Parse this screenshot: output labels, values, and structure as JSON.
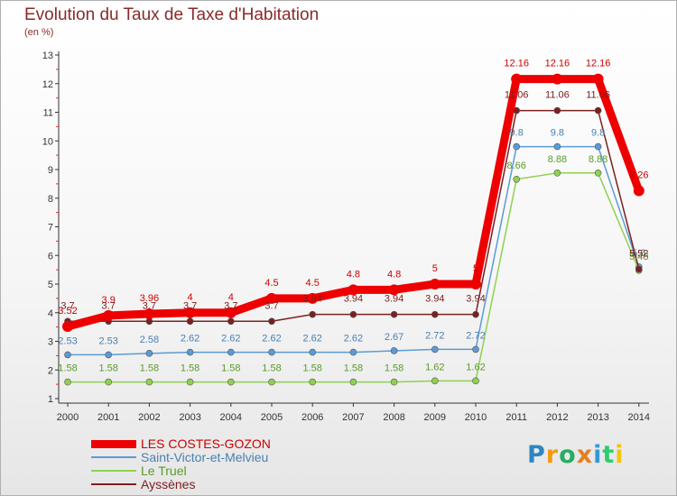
{
  "chart_data": {
    "type": "line",
    "title": "Evolution du Taux de Taxe d'Habitation",
    "unit_label": "(en %)",
    "xlabel": "",
    "ylabel": "",
    "categories": [
      "2000",
      "2001",
      "2002",
      "2003",
      "2004",
      "2005",
      "2006",
      "2007",
      "2008",
      "2009",
      "2010",
      "2011",
      "2012",
      "2013",
      "2014"
    ],
    "ylim": [
      1,
      13
    ],
    "yticks": [
      1,
      2,
      3,
      4,
      5,
      6,
      7,
      8,
      9,
      10,
      11,
      12,
      13
    ],
    "grid": false,
    "legend_position": "bottom-left",
    "series": [
      {
        "name": "LES COSTES-GOZON",
        "color": "#ee0000",
        "text_color": "#cc0000",
        "values": [
          3.52,
          3.9,
          3.96,
          4.0,
          4.0,
          4.5,
          4.5,
          4.8,
          4.8,
          5.0,
          5.0,
          12.16,
          12.16,
          12.16,
          8.26
        ],
        "labels": [
          "3.52",
          "3.9",
          "3.96",
          "4",
          "4",
          "4.5",
          "4.5",
          "4.8",
          "4.8",
          "5",
          "5",
          "12.16",
          "12.16",
          "12.16",
          "8.26"
        ]
      },
      {
        "name": "Saint-Victor-et-Melvieu",
        "color": "#5b9bd5",
        "text_color": "#4a7fb0",
        "values": [
          2.53,
          2.53,
          2.58,
          2.62,
          2.62,
          2.62,
          2.62,
          2.62,
          2.67,
          2.72,
          2.72,
          9.8,
          9.8,
          9.8,
          5.6
        ],
        "labels": [
          "2.53",
          "2.53",
          "2.58",
          "2.62",
          "2.62",
          "2.62",
          "2.62",
          "2.62",
          "2.67",
          "2.72",
          "2.72",
          "9.8",
          "9.8",
          "9.8",
          "5.6"
        ]
      },
      {
        "name": "Le Truel",
        "color": "#8fd14f",
        "text_color": "#5a9a2a",
        "values": [
          1.58,
          1.58,
          1.58,
          1.58,
          1.58,
          1.58,
          1.58,
          1.58,
          1.58,
          1.62,
          1.62,
          8.66,
          8.88,
          8.88,
          5.48
        ],
        "labels": [
          "1.58",
          "1.58",
          "1.58",
          "1.58",
          "1.58",
          "1.58",
          "1.58",
          "1.58",
          "1.58",
          "1.62",
          "1.62",
          "8.66",
          "8.88",
          "8.88",
          "5.48"
        ]
      },
      {
        "name": "Ayssènes",
        "color": "#7b2020",
        "text_color": "#7b2020",
        "values": [
          3.7,
          3.7,
          3.7,
          3.7,
          3.7,
          3.7,
          3.94,
          3.94,
          3.94,
          3.94,
          3.94,
          11.06,
          11.06,
          11.06,
          5.52
        ],
        "labels": [
          "3.7",
          "3.7",
          "3.7",
          "3.7",
          "3.7",
          "3.7",
          "3.94",
          "3.94",
          "3.94",
          "3.94",
          "3.94",
          "11.06",
          "11.06",
          "11.06",
          "5.52"
        ]
      }
    ]
  },
  "brand": {
    "letters": [
      "P",
      "r",
      "o",
      "x",
      "i",
      "t",
      "i"
    ],
    "colors": [
      "#2e86c1",
      "#f39c12",
      "#27ae60",
      "#e67e22",
      "#3498db",
      "#2ecc71",
      "#f1c40f"
    ]
  }
}
